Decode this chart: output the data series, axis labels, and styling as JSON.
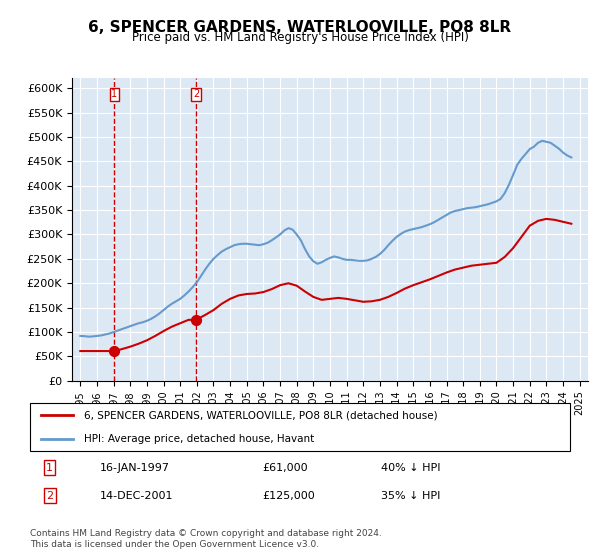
{
  "title": "6, SPENCER GARDENS, WATERLOOVILLE, PO8 8LR",
  "subtitle": "Price paid vs. HM Land Registry's House Price Index (HPI)",
  "legend_line1": "6, SPENCER GARDENS, WATERLOOVILLE, PO8 8LR (detached house)",
  "legend_line2": "HPI: Average price, detached house, Havant",
  "transaction1_date": "16-JAN-1997",
  "transaction1_price": 61000,
  "transaction1_hpi": "40% ↓ HPI",
  "transaction1_label": "1",
  "transaction1_year": 1997.04,
  "transaction2_date": "14-DEC-2001",
  "transaction2_price": 125000,
  "transaction2_hpi": "35% ↓ HPI",
  "transaction2_label": "2",
  "transaction2_year": 2001.95,
  "xlim": [
    1994.5,
    2025.5
  ],
  "ylim": [
    0,
    620000
  ],
  "background_color": "#dce9f5",
  "plot_bg_color": "#dce9f5",
  "grid_color": "#ffffff",
  "red_line_color": "#cc0000",
  "blue_line_color": "#6699cc",
  "dashed_line_color": "#cc0000",
  "footer": "Contains HM Land Registry data © Crown copyright and database right 2024.\nThis data is licensed under the Open Government Licence v3.0.",
  "hpi_years": [
    1995,
    1995.25,
    1995.5,
    1995.75,
    1996,
    1996.25,
    1996.5,
    1996.75,
    1997,
    1997.25,
    1997.5,
    1997.75,
    1998,
    1998.25,
    1998.5,
    1998.75,
    1999,
    1999.25,
    1999.5,
    1999.75,
    2000,
    2000.25,
    2000.5,
    2000.75,
    2001,
    2001.25,
    2001.5,
    2001.75,
    2002,
    2002.25,
    2002.5,
    2002.75,
    2003,
    2003.25,
    2003.5,
    2003.75,
    2004,
    2004.25,
    2004.5,
    2004.75,
    2005,
    2005.25,
    2005.5,
    2005.75,
    2006,
    2006.25,
    2006.5,
    2006.75,
    2007,
    2007.25,
    2007.5,
    2007.75,
    2008,
    2008.25,
    2008.5,
    2008.75,
    2009,
    2009.25,
    2009.5,
    2009.75,
    2010,
    2010.25,
    2010.5,
    2010.75,
    2011,
    2011.25,
    2011.5,
    2011.75,
    2012,
    2012.25,
    2012.5,
    2012.75,
    2013,
    2013.25,
    2013.5,
    2013.75,
    2014,
    2014.25,
    2014.5,
    2014.75,
    2015,
    2015.25,
    2015.5,
    2015.75,
    2016,
    2016.25,
    2016.5,
    2016.75,
    2017,
    2017.25,
    2017.5,
    2017.75,
    2018,
    2018.25,
    2018.5,
    2018.75,
    2019,
    2019.25,
    2019.5,
    2019.75,
    2020,
    2020.25,
    2020.5,
    2020.75,
    2021,
    2021.25,
    2021.5,
    2021.75,
    2022,
    2022.25,
    2022.5,
    2022.75,
    2023,
    2023.25,
    2023.5,
    2023.75,
    2024,
    2024.25,
    2024.5
  ],
  "hpi_values": [
    92000,
    91500,
    90500,
    91000,
    92000,
    93000,
    95000,
    97000,
    100000,
    103000,
    106000,
    109000,
    112000,
    115000,
    118000,
    120000,
    123000,
    127000,
    132000,
    138000,
    145000,
    152000,
    158000,
    163000,
    168000,
    175000,
    183000,
    192000,
    202000,
    215000,
    228000,
    240000,
    250000,
    258000,
    265000,
    270000,
    274000,
    278000,
    280000,
    281000,
    281000,
    280000,
    279000,
    278000,
    280000,
    283000,
    288000,
    294000,
    300000,
    308000,
    313000,
    310000,
    300000,
    288000,
    270000,
    255000,
    245000,
    240000,
    243000,
    248000,
    252000,
    255000,
    253000,
    250000,
    248000,
    248000,
    247000,
    246000,
    246000,
    247000,
    250000,
    254000,
    260000,
    268000,
    278000,
    287000,
    295000,
    301000,
    306000,
    309000,
    311000,
    313000,
    315000,
    318000,
    321000,
    325000,
    330000,
    335000,
    340000,
    345000,
    348000,
    350000,
    352000,
    354000,
    355000,
    356000,
    358000,
    360000,
    362000,
    365000,
    368000,
    373000,
    385000,
    402000,
    422000,
    443000,
    455000,
    465000,
    475000,
    480000,
    488000,
    492000,
    490000,
    488000,
    482000,
    476000,
    468000,
    462000,
    458000
  ],
  "price_paid_years": [
    1997.04,
    2001.95
  ],
  "price_paid_values": [
    61000,
    125000
  ],
  "red_line_years": [
    1995,
    1995.5,
    1996,
    1996.5,
    1997.04,
    1997.5,
    1998,
    1998.5,
    1999,
    1999.5,
    2000,
    2000.5,
    2001,
    2001.5,
    2001.95,
    2002.5,
    2003,
    2003.5,
    2004,
    2004.5,
    2005,
    2005.5,
    2006,
    2006.5,
    2007,
    2007.5,
    2008,
    2008.5,
    2009,
    2009.5,
    2010,
    2010.5,
    2011,
    2011.5,
    2012,
    2012.5,
    2013,
    2013.5,
    2014,
    2014.5,
    2015,
    2015.5,
    2016,
    2016.5,
    2017,
    2017.5,
    2018,
    2018.5,
    2019,
    2019.5,
    2020,
    2020.5,
    2021,
    2021.5,
    2022,
    2022.5,
    2023,
    2023.5,
    2024,
    2024.5
  ],
  "red_line_values": [
    61000,
    61000,
    61000,
    61000,
    61000,
    65000,
    70000,
    76000,
    83000,
    92000,
    102000,
    111000,
    118000,
    125000,
    125000,
    135000,
    145000,
    158000,
    168000,
    175000,
    178000,
    179000,
    182000,
    188000,
    196000,
    200000,
    195000,
    183000,
    172000,
    166000,
    168000,
    170000,
    168000,
    165000,
    162000,
    163000,
    166000,
    172000,
    180000,
    189000,
    196000,
    202000,
    208000,
    215000,
    222000,
    228000,
    232000,
    236000,
    238000,
    240000,
    242000,
    254000,
    272000,
    295000,
    318000,
    328000,
    332000,
    330000,
    326000,
    322000
  ]
}
